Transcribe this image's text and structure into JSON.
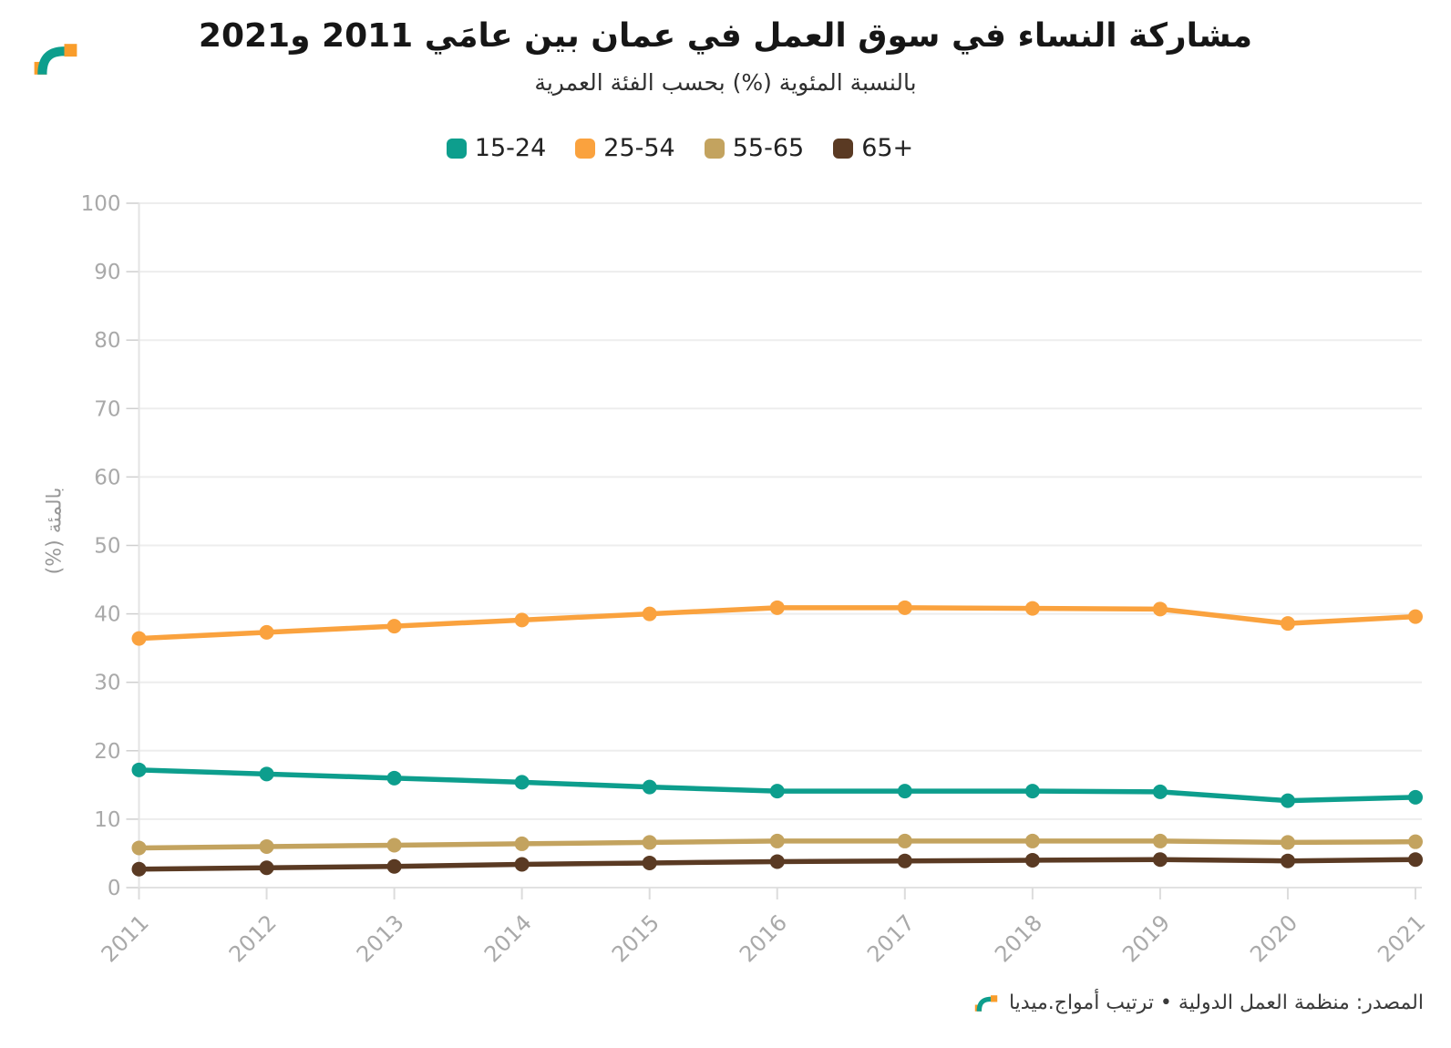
{
  "header": {
    "title": "مشاركة النساء في سوق العمل في عمان بين عامَي 2011 و2021",
    "subtitle": "بالنسبة المئوية (%) بحسب الفئة العمرية"
  },
  "chart_data": {
    "type": "line",
    "title": "مشاركة النساء في سوق العمل في عمان بين عامَي 2011 و2021",
    "subtitle": "بالنسبة المئوية (%) بحسب الفئة العمرية",
    "x": [
      2011,
      2012,
      2013,
      2014,
      2015,
      2016,
      2017,
      2018,
      2019,
      2020,
      2021
    ],
    "series": [
      {
        "name": "15-24",
        "color": "#0d9e8d",
        "values": [
          17.2,
          16.6,
          16.0,
          15.4,
          14.7,
          14.1,
          14.1,
          14.1,
          14.0,
          12.7,
          13.2
        ]
      },
      {
        "name": "25-54",
        "color": "#faa23e",
        "values": [
          36.4,
          37.3,
          38.2,
          39.1,
          40.0,
          40.9,
          40.9,
          40.8,
          40.7,
          38.6,
          39.6
        ]
      },
      {
        "name": "55-65",
        "color": "#c3a35f",
        "values": [
          5.8,
          6.0,
          6.2,
          6.4,
          6.6,
          6.8,
          6.8,
          6.8,
          6.8,
          6.6,
          6.7
        ]
      },
      {
        "name": "65+",
        "color": "#5a3a23",
        "values": [
          2.7,
          2.9,
          3.1,
          3.4,
          3.6,
          3.8,
          3.9,
          4.0,
          4.1,
          3.9,
          4.1
        ]
      }
    ],
    "xlabel": "",
    "ylabel": "بالمئة (%)",
    "ylim": [
      0,
      100
    ],
    "ytick_step": 10,
    "grid": true,
    "legend_position": "top"
  },
  "source": {
    "text": "المصدر: منظمة العمل الدولية • ترتيب أمواج.ميديا"
  },
  "colors": {
    "grid": "#ededed",
    "baseline": "#e2e2e2",
    "tick": "#cfcfcf",
    "axis_label": "#a9a9a9",
    "brand_orange": "#f99d2b",
    "brand_teal": "#0d9e8d"
  }
}
